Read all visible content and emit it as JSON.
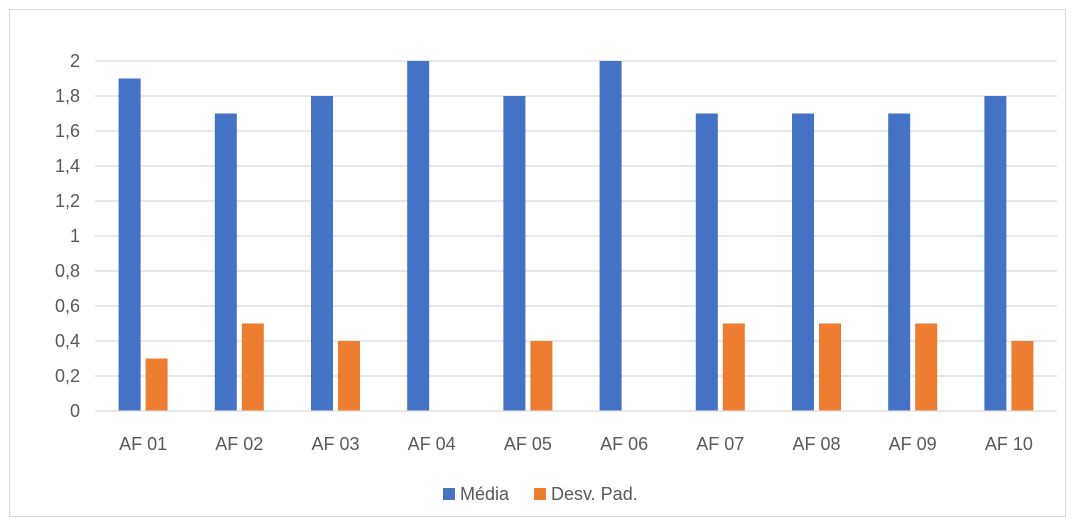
{
  "chart_data": {
    "type": "bar",
    "categories": [
      "AF 01",
      "AF 02",
      "AF 03",
      "AF 04",
      "AF 05",
      "AF 06",
      "AF 07",
      "AF 08",
      "AF 09",
      "AF 10"
    ],
    "series": [
      {
        "name": "Média",
        "color": "#4472C4",
        "values": [
          1.9,
          1.7,
          1.8,
          2.0,
          1.8,
          2.0,
          1.7,
          1.7,
          1.7,
          1.8
        ]
      },
      {
        "name": "Desv. Pad.",
        "color": "#ED7D31",
        "values": [
          0.3,
          0.5,
          0.4,
          0,
          0.4,
          0,
          0.5,
          0.5,
          0.5,
          0.4
        ]
      }
    ],
    "y_ticks": [
      "0",
      "0,2",
      "0,4",
      "0,6",
      "0,8",
      "1",
      "1,2",
      "1,4",
      "1,6",
      "1,8",
      "2"
    ],
    "ylim": [
      0,
      2
    ],
    "grid": true,
    "legend_position": "bottom",
    "gridline_color": "#d9d9d9",
    "axis_color": "#d9d9d9",
    "text_color": "#595959"
  }
}
